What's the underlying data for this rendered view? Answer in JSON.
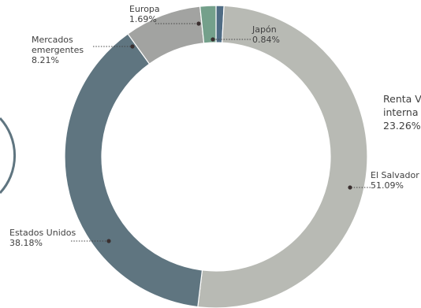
{
  "chart_data": {
    "type": "pie",
    "donut": true,
    "title": "",
    "slices": [
      {
        "name": "Japón",
        "lines": [
          "Japón"
        ],
        "value_label": "0.84%",
        "value": 0.84,
        "color": "#4f6c84"
      },
      {
        "name": "El Salvador",
        "lines": [
          "El Salvador"
        ],
        "value_label": "51.09%",
        "value": 51.09,
        "color": "#b8bab4"
      },
      {
        "name": "Estados Unidos",
        "lines": [
          "Estados Unidos"
        ],
        "value_label": "38.18%",
        "value": 38.18,
        "color": "#5f7580"
      },
      {
        "name": "Mercados emergentes",
        "lines": [
          "Mercados",
          "emergentes"
        ],
        "value_label": "8.21%",
        "value": 8.21,
        "color": "#a2a3a1"
      },
      {
        "name": "Europa",
        "lines": [
          "Europa"
        ],
        "value_label": "1.69%",
        "value": 1.69,
        "color": "#74a08b"
      }
    ],
    "partial_label": {
      "lines": [
        "Renta V",
        "interna",
        "23.26%"
      ]
    }
  }
}
